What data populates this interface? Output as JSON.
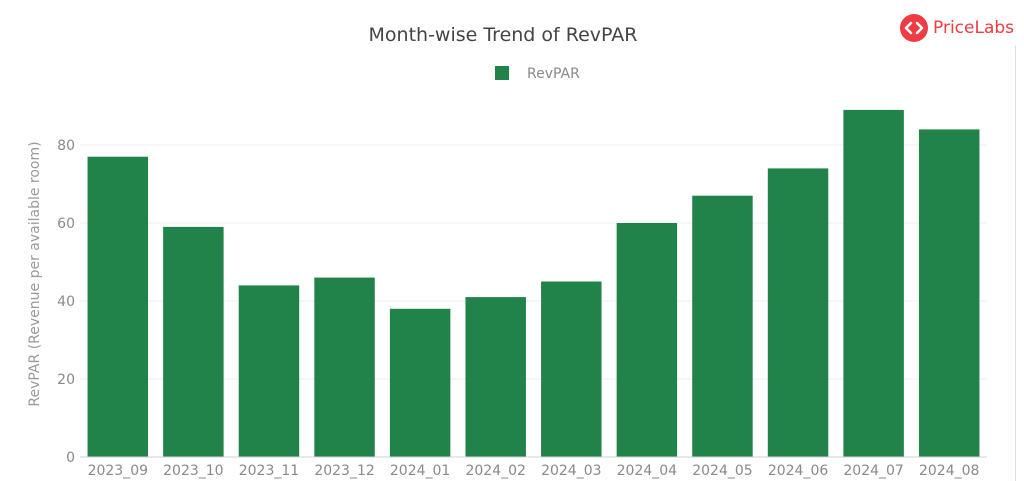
{
  "brand": {
    "name": "PriceLabs",
    "color": "#ef3b42"
  },
  "chart_data": {
    "type": "bar",
    "title": "Month-wise Trend of RevPAR",
    "xlabel": "",
    "ylabel": "RevPAR (Revenue per available room)",
    "ylim": [
      0,
      90
    ],
    "yticks": [
      0,
      20,
      40,
      60,
      80
    ],
    "grid": true,
    "legend_position": "top-center",
    "categories": [
      "2023_09",
      "2023_10",
      "2023_11",
      "2023_12",
      "2024_01",
      "2024_02",
      "2024_03",
      "2024_04",
      "2024_05",
      "2024_06",
      "2024_07",
      "2024_08"
    ],
    "series": [
      {
        "name": "RevPAR",
        "color": "#22834a",
        "values": [
          77,
          59,
          44,
          46,
          38,
          41,
          45,
          60,
          67,
          74,
          89,
          84
        ]
      }
    ]
  }
}
